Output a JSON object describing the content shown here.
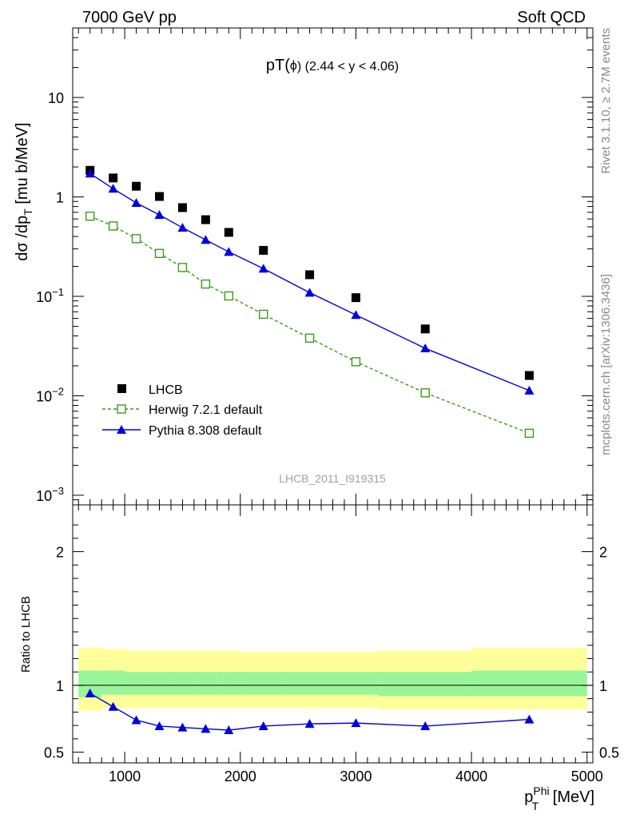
{
  "header": {
    "left": "7000 GeV pp",
    "right": "Soft QCD"
  },
  "side_labels": {
    "rivet": "Rivet 3.1.10, ≥ 2.7M events",
    "mcplots": "mcplots.cern.ch [arXiv:1306.3436]"
  },
  "watermark": "LHCB_2011_I919315",
  "colors": {
    "data": "#000000",
    "herwig": "#3a9a1a",
    "pythia": "#0000dd",
    "band_inner": "#99f599",
    "band_outer": "#ffff99"
  },
  "chart_data": [
    {
      "type": "line",
      "panel": "main",
      "title_main": "pT(",
      "title_phi": "ϕ",
      "title_range": ") (2.44 < y < 4.06)",
      "ylabel_main": "dσ /dp",
      "ylabel_sub": "T",
      "ylabel_unit": " [mu b/MeV]",
      "yscale": "log",
      "xlim": [
        550,
        5050
      ],
      "ylim": [
        0.0008,
        50
      ],
      "y_ticks": [
        {
          "value": 10,
          "base": "10",
          "exp": ""
        },
        {
          "value": 1,
          "base": "1",
          "exp": ""
        },
        {
          "value": 0.1,
          "base": "10",
          "exp": "−1"
        },
        {
          "value": 0.01,
          "base": "10",
          "exp": "−2"
        },
        {
          "value": 0.001,
          "base": "10",
          "exp": "−3"
        }
      ],
      "legend_position": "lower-left",
      "series": [
        {
          "name": "LHCB",
          "style": "data",
          "x": [
            700,
            900,
            1100,
            1300,
            1500,
            1700,
            1900,
            2200,
            2600,
            3000,
            3600,
            4500
          ],
          "y": [
            1.85,
            1.55,
            1.28,
            1.01,
            0.78,
            0.59,
            0.44,
            0.29,
            0.165,
            0.097,
            0.047,
            0.016
          ]
        },
        {
          "name": "Herwig 7.2.1 default",
          "style": "herwig",
          "x": [
            700,
            900,
            1100,
            1300,
            1500,
            1700,
            1900,
            2200,
            2600,
            3000,
            3600,
            4500
          ],
          "y": [
            0.64,
            0.51,
            0.38,
            0.27,
            0.195,
            0.133,
            0.101,
            0.066,
            0.038,
            0.022,
            0.0107,
            0.0042
          ]
        },
        {
          "name": "Pythia 8.308 default",
          "style": "pythia",
          "x": [
            700,
            900,
            1100,
            1300,
            1500,
            1700,
            1900,
            2200,
            2600,
            3000,
            3600,
            4500
          ],
          "y": [
            1.72,
            1.21,
            0.87,
            0.66,
            0.49,
            0.37,
            0.28,
            0.19,
            0.109,
            0.065,
            0.03,
            0.0113
          ]
        }
      ]
    },
    {
      "type": "line",
      "panel": "ratio",
      "ylabel": "Ratio to LHCB",
      "xlabel_main": "p",
      "xlabel_sup": "Phi",
      "xlabel_sub": "T",
      "xlabel_unit": " [MeV]",
      "xlim": [
        550,
        5050
      ],
      "ylim": [
        0.42,
        2.35
      ],
      "x_ticks": [
        "1000",
        "2000",
        "3000",
        "4000",
        "5000"
      ],
      "y_ticks": [
        "0.5",
        "1",
        "2"
      ],
      "reference_line": 1,
      "bands": {
        "edges": [
          600,
          800,
          1000,
          1200,
          1400,
          1600,
          1800,
          2000,
          2400,
          2800,
          3200,
          4000,
          5000
        ],
        "inner_lo": [
          0.91,
          0.93,
          0.93,
          0.93,
          0.93,
          0.93,
          0.93,
          0.93,
          0.93,
          0.93,
          0.92,
          0.92
        ],
        "inner_hi": [
          1.11,
          1.11,
          1.1,
          1.1,
          1.1,
          1.1,
          1.1,
          1.1,
          1.1,
          1.1,
          1.1,
          1.11
        ],
        "outer_lo": [
          0.81,
          0.83,
          0.83,
          0.83,
          0.83,
          0.83,
          0.83,
          0.83,
          0.83,
          0.83,
          0.82,
          0.82
        ],
        "outer_hi": [
          1.28,
          1.27,
          1.26,
          1.26,
          1.26,
          1.26,
          1.26,
          1.25,
          1.25,
          1.25,
          1.26,
          1.28
        ]
      },
      "series": [
        {
          "name": "Pythia 8.308 default",
          "style": "pythia",
          "x": [
            700,
            900,
            1100,
            1300,
            1500,
            1700,
            1900,
            2200,
            2600,
            3000,
            3600,
            4500
          ],
          "y": [
            0.94,
            0.84,
            0.74,
            0.695,
            0.685,
            0.675,
            0.665,
            0.695,
            0.712,
            0.718,
            0.695,
            0.745
          ]
        }
      ]
    }
  ]
}
